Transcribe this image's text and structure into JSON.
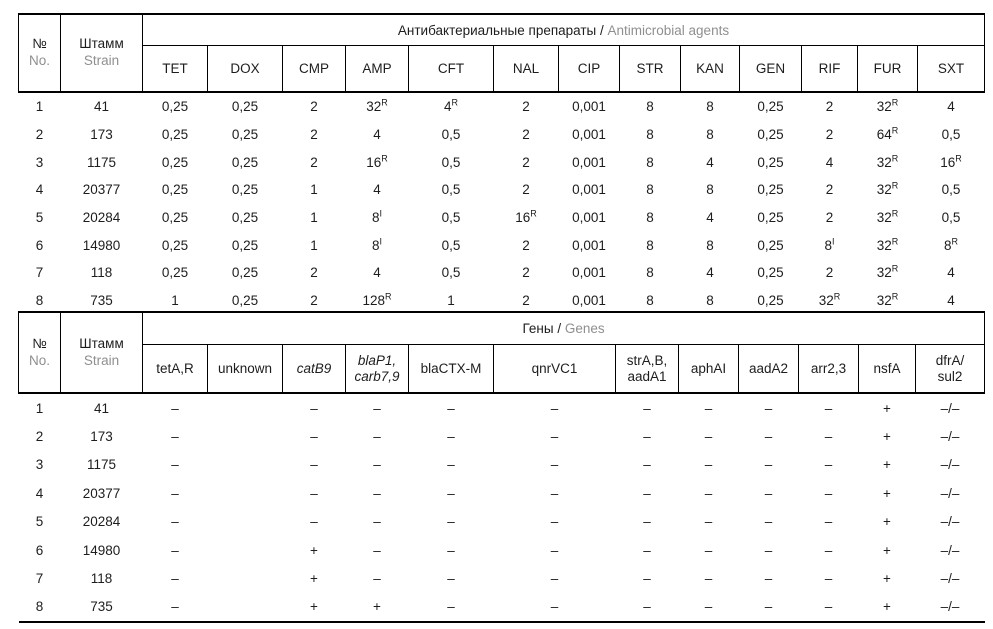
{
  "colors": {
    "text": "#1d1d1d",
    "muted_text": "#8f8f8f",
    "border": "#000000",
    "background": "#ffffff"
  },
  "table1": {
    "corner": {
      "no_ru": "№",
      "no_en": "No.",
      "strain_ru": "Штамм",
      "strain_en": "Strain"
    },
    "group_ru": "Антибактериальные препараты / ",
    "group_en": "Antimicrobial agents",
    "columns": [
      "TET",
      "DOX",
      "CMP",
      "AMP",
      "CFT",
      "NAL",
      "CIP",
      "STR",
      "KAN",
      "GEN",
      "RIF",
      "FUR",
      "SXT"
    ],
    "rows": [
      {
        "no": "1",
        "strain": "41",
        "values": [
          "0,25",
          "0,25",
          "2",
          "32^R",
          "4^R",
          "2",
          "0,001",
          "8",
          "8",
          "0,25",
          "2",
          "32^R",
          "4"
        ]
      },
      {
        "no": "2",
        "strain": "173",
        "values": [
          "0,25",
          "0,25",
          "2",
          "4",
          "0,5",
          "2",
          "0,001",
          "8",
          "8",
          "0,25",
          "2",
          "64^R",
          "0,5"
        ]
      },
      {
        "no": "3",
        "strain": "1175",
        "values": [
          "0,25",
          "0,25",
          "2",
          "16^R",
          "0,5",
          "2",
          "0,001",
          "8",
          "4",
          "0,25",
          "4",
          "32^R",
          "16^R"
        ]
      },
      {
        "no": "4",
        "strain": "20377",
        "values": [
          "0,25",
          "0,25",
          "1",
          "4",
          "0,5",
          "2",
          "0,001",
          "8",
          "8",
          "0,25",
          "2",
          "32^R",
          "0,5"
        ]
      },
      {
        "no": "5",
        "strain": "20284",
        "values": [
          "0,25",
          "0,25",
          "1",
          "8^I",
          "0,5",
          "16^R",
          "0,001",
          "8",
          "4",
          "0,25",
          "2",
          "32^R",
          "0,5"
        ]
      },
      {
        "no": "6",
        "strain": "14980",
        "values": [
          "0,25",
          "0,25",
          "1",
          "8^I",
          "0,5",
          "2",
          "0,001",
          "8",
          "8",
          "0,25",
          "8^I",
          "32^R",
          "8^R"
        ]
      },
      {
        "no": "7",
        "strain": "118",
        "values": [
          "0,25",
          "0,25",
          "2",
          "4",
          "0,5",
          "2",
          "0,001",
          "8",
          "4",
          "0,25",
          "2",
          "32^R",
          "4"
        ]
      },
      {
        "no": "8",
        "strain": "735",
        "values": [
          "1",
          "0,25",
          "2",
          "128^R",
          "1",
          "2",
          "0,001",
          "8",
          "8",
          "0,25",
          "32^R",
          "32^R",
          "4"
        ]
      }
    ]
  },
  "table2": {
    "corner": {
      "no_ru": "№",
      "no_en": "No.",
      "strain_ru": "Штамм",
      "strain_en": "Strain"
    },
    "group_ru": "Гены / ",
    "group_en": "Genes",
    "columns": [
      {
        "label": "tetA,R",
        "italic": false
      },
      {
        "label": "unknown",
        "italic": false
      },
      {
        "label": "catB9",
        "italic": true
      },
      {
        "label": "blaP1,\ncarb7,9",
        "italic": true
      },
      {
        "label": "blaCTX-M",
        "italic": false
      },
      {
        "label": "qnrVC1",
        "italic": false
      },
      {
        "label": "strA,B,\naadA1",
        "italic": false
      },
      {
        "label": "aphAI",
        "italic": false
      },
      {
        "label": "aadA2",
        "italic": false
      },
      {
        "label": "arr2,3",
        "italic": false
      },
      {
        "label": "nsfA",
        "italic": false
      },
      {
        "label": "dfrA/\nsul2",
        "italic": false
      }
    ],
    "rows": [
      {
        "no": "1",
        "strain": "41",
        "values": [
          "–",
          "",
          "–",
          "–",
          "–",
          "–",
          "–",
          "–",
          "–",
          "–",
          "+",
          "–/–"
        ]
      },
      {
        "no": "2",
        "strain": "173",
        "values": [
          "–",
          "",
          "–",
          "–",
          "–",
          "–",
          "–",
          "–",
          "–",
          "–",
          "+",
          "–/–"
        ]
      },
      {
        "no": "3",
        "strain": "1175",
        "values": [
          "–",
          "",
          "–",
          "–",
          "–",
          "–",
          "–",
          "–",
          "–",
          "–",
          "+",
          "–/–"
        ]
      },
      {
        "no": "4",
        "strain": "20377",
        "values": [
          "–",
          "",
          "–",
          "–",
          "–",
          "–",
          "–",
          "–",
          "–",
          "–",
          "+",
          "–/–"
        ]
      },
      {
        "no": "5",
        "strain": "20284",
        "values": [
          "–",
          "",
          "–",
          "–",
          "–",
          "–",
          "–",
          "–",
          "–",
          "–",
          "+",
          "–/–"
        ]
      },
      {
        "no": "6",
        "strain": "14980",
        "values": [
          "–",
          "",
          "+",
          "–",
          "–",
          "–",
          "–",
          "–",
          "–",
          "–",
          "+",
          "–/–"
        ]
      },
      {
        "no": "7",
        "strain": "118",
        "values": [
          "–",
          "",
          "+",
          "–",
          "–",
          "–",
          "–",
          "–",
          "–",
          "–",
          "+",
          "–/–"
        ]
      },
      {
        "no": "8",
        "strain": "735",
        "values": [
          "–",
          "",
          "+",
          "+",
          "–",
          "–",
          "–",
          "–",
          "–",
          "–",
          "+",
          "–/–"
        ]
      }
    ]
  }
}
